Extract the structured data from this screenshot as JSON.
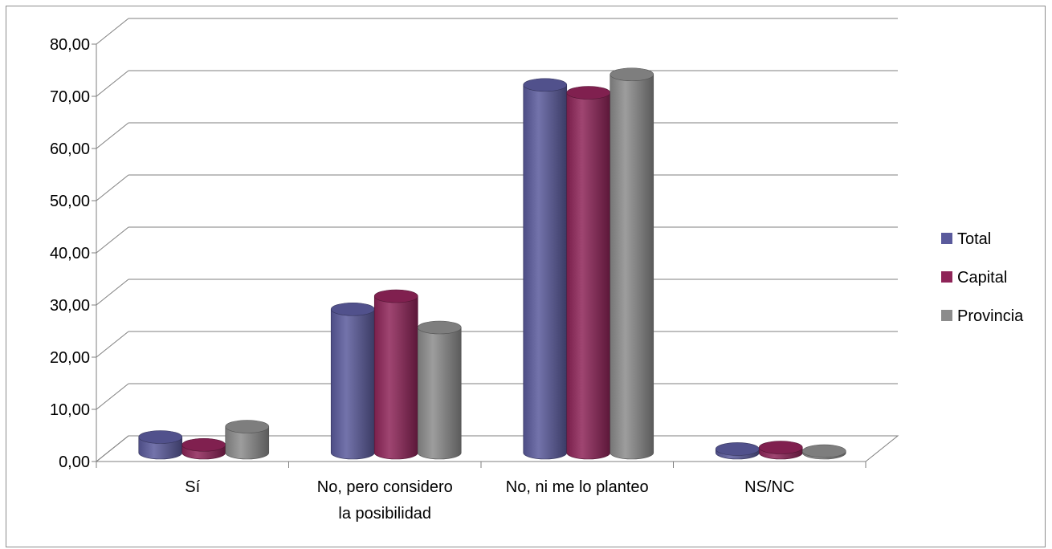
{
  "chart_data": {
    "type": "bar",
    "title": "",
    "xlabel": "",
    "ylabel": "",
    "categories": [
      [
        "Sí"
      ],
      [
        "No, pero considero",
        "la posibilidad"
      ],
      [
        "No, ni me lo planteo"
      ],
      [
        "NS/NC"
      ]
    ],
    "series": [
      {
        "name": "Total",
        "values": [
          3.0,
          27.5,
          70.5,
          0.7
        ],
        "color": "#5A5A9C"
      },
      {
        "name": "Capital",
        "values": [
          1.5,
          30.0,
          69.0,
          1.0
        ],
        "color": "#8E2458"
      },
      {
        "name": "Provincia",
        "values": [
          5.0,
          24.0,
          72.5,
          0.3
        ],
        "color": "#8C8C8C"
      }
    ],
    "ylim": [
      0,
      80
    ],
    "yticks": [
      "0,00",
      "10,00",
      "20,00",
      "30,00",
      "40,00",
      "50,00",
      "60,00",
      "70,00",
      "80,00"
    ],
    "grid": true,
    "legend_position": "right",
    "three_d": true
  }
}
